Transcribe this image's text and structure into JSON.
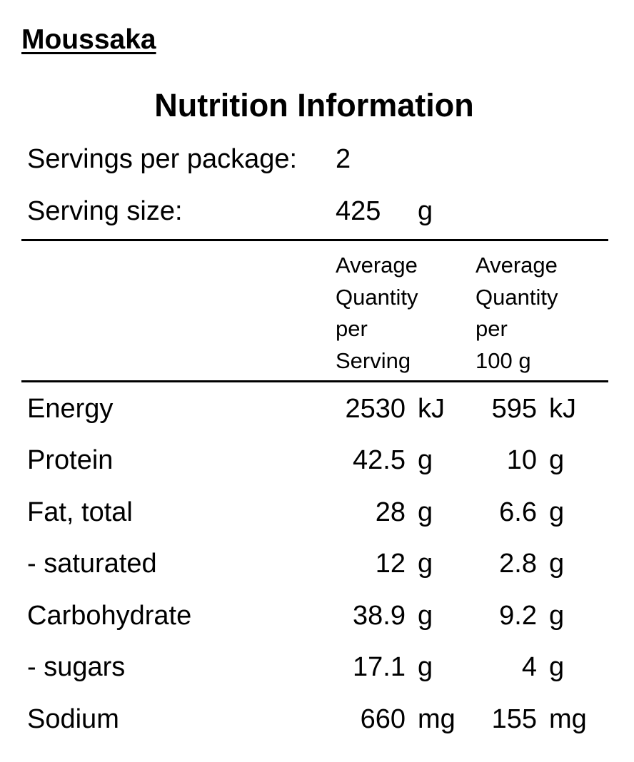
{
  "product": {
    "name": "Moussaka"
  },
  "panel": {
    "title": "Nutrition Information",
    "servings_label": "Servings per package:",
    "servings_value": "2",
    "serving_size_label": "Serving size:",
    "serving_size_value": "425",
    "serving_size_unit": "g"
  },
  "columns": {
    "per_serving": [
      "Average",
      "Quantity",
      "per",
      "Serving"
    ],
    "per_100g": [
      "Average",
      "Quantity",
      "per",
      "100 g"
    ]
  },
  "nutrients": [
    {
      "name": "Energy",
      "per_serving": "2530",
      "per_serving_unit": "kJ",
      "per_100g": "595",
      "per_100g_unit": "kJ"
    },
    {
      "name": "Protein",
      "per_serving": "42.5",
      "per_serving_unit": "g",
      "per_100g": "10",
      "per_100g_unit": "g"
    },
    {
      "name": "Fat, total",
      "per_serving": "28",
      "per_serving_unit": "g",
      "per_100g": "6.6",
      "per_100g_unit": "g"
    },
    {
      "name": "- saturated",
      "per_serving": "12",
      "per_serving_unit": "g",
      "per_100g": "2.8",
      "per_100g_unit": "g"
    },
    {
      "name": "Carbohydrate",
      "per_serving": "38.9",
      "per_serving_unit": "g",
      "per_100g": "9.2",
      "per_100g_unit": "g"
    },
    {
      "name": "- sugars",
      "per_serving": "17.1",
      "per_serving_unit": "g",
      "per_100g": "4",
      "per_100g_unit": "g"
    },
    {
      "name": "Sodium",
      "per_serving": "660",
      "per_serving_unit": "mg",
      "per_100g": "155",
      "per_100g_unit": "mg"
    }
  ]
}
